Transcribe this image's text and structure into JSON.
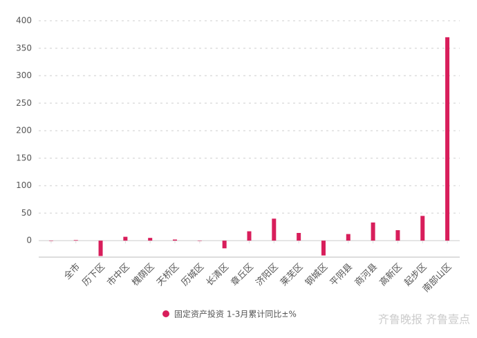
{
  "chart_data": {
    "type": "bar",
    "categories": [
      null,
      "全市",
      "历下区",
      "市中区",
      "槐荫区",
      "天桥区",
      "历城区",
      "长清区",
      "章丘区",
      "济阳区",
      "莱芜区",
      "钢城区",
      "平阴县",
      "商河县",
      "高新区",
      "起步区",
      "南部山区"
    ],
    "series": [
      {
        "name": "固定资产投资 1-3月累计同比±%",
        "color": "#d81e5b",
        "values": [
          0,
          1,
          -28,
          7,
          5,
          2,
          0,
          -14,
          17,
          40,
          14,
          -27,
          12,
          33,
          19,
          45,
          370
        ]
      }
    ],
    "ylim": [
      -30,
      400
    ],
    "yticks": [
      0,
      50,
      100,
      150,
      200,
      250,
      300,
      350,
      400
    ],
    "grid": true,
    "legend": "bottom",
    "watermark": "齐鲁晚报 齐鲁壹点"
  }
}
